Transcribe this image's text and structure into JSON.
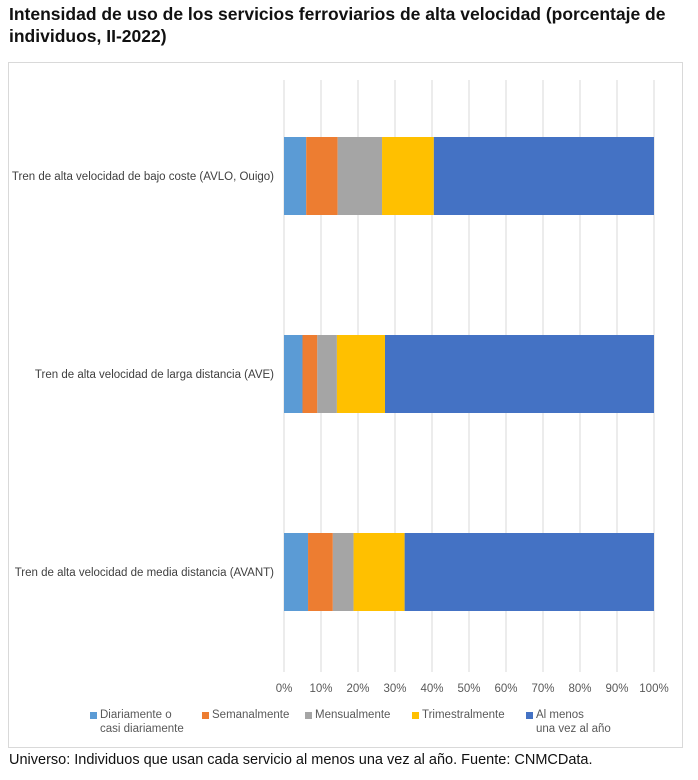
{
  "title": "Intensidad de uso de los servicios ferroviarios de alta velocidad (porcentaje de individuos, II-2022)",
  "footnote": "Universo: Individuos que usan cada servicio al menos una vez al año. Fuente: CNMCData.",
  "chart_data": {
    "type": "bar",
    "orientation": "horizontal",
    "stacked": true,
    "title": "Intensidad de uso de los servicios ferroviarios de alta velocidad (porcentaje de individuos, II-2022)",
    "categories": [
      "Tren de alta velocidad de bajo coste (AVLO, Ouigo)",
      "Tren de alta velocidad de larga distancia (AVE)",
      "Tren de alta velocidad de media distancia (AVANT)"
    ],
    "series": [
      {
        "name": "Diariamente o\ncasi diariamente",
        "color": "#5b9bd5",
        "values": [
          6,
          5,
          6.5
        ]
      },
      {
        "name": "Semanalmente",
        "color": "#ed7d31",
        "values": [
          8.5,
          4,
          6.7
        ]
      },
      {
        "name": "Mensualmente",
        "color": "#a5a5a5",
        "values": [
          12,
          5.3,
          5.6
        ]
      },
      {
        "name": "Trimestralmente",
        "color": "#ffc000",
        "values": [
          14,
          13,
          13.8
        ]
      },
      {
        "name": "Al menos\nuna vez al año",
        "color": "#4472c4",
        "values": [
          59.5,
          72.7,
          67.4
        ]
      }
    ],
    "xticks": [
      "0%",
      "10%",
      "20%",
      "30%",
      "40%",
      "50%",
      "60%",
      "70%",
      "80%",
      "90%",
      "100%"
    ],
    "xlim": [
      0,
      100
    ],
    "grid": true,
    "legend_position": "bottom"
  }
}
